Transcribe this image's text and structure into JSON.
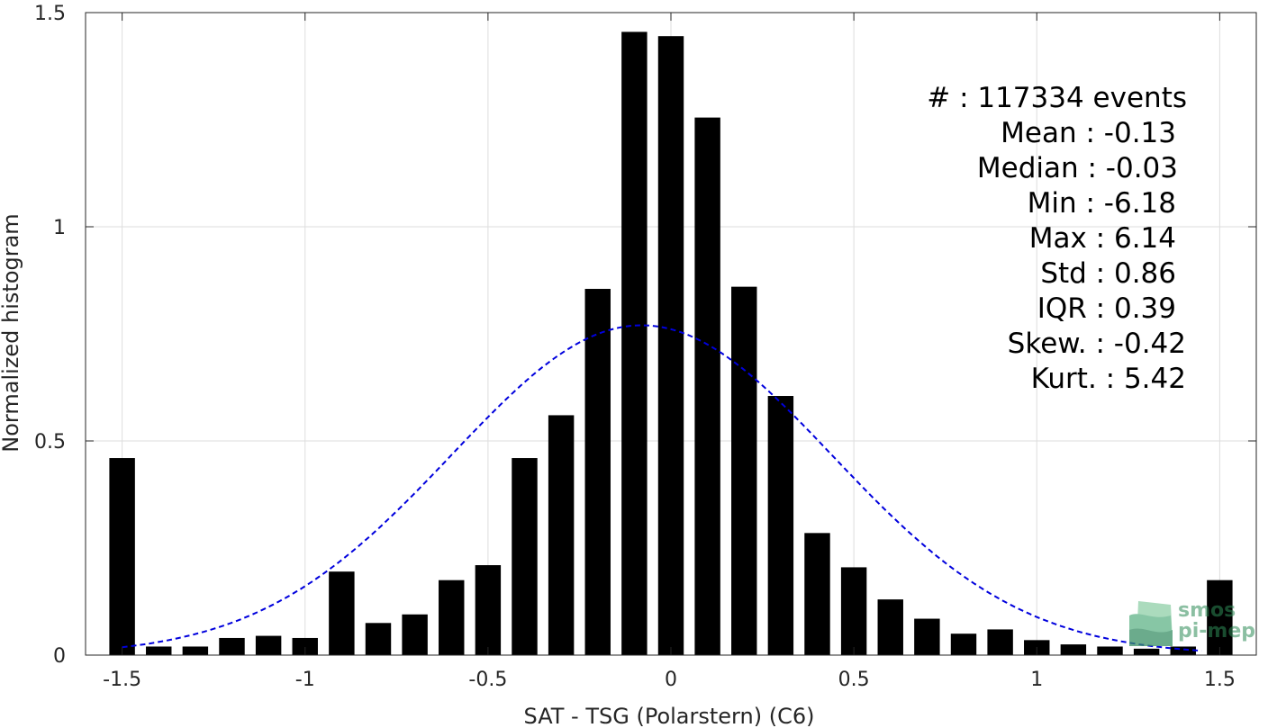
{
  "chart_data": {
    "type": "bar",
    "title": "",
    "xlabel": "SAT - TSG (Polarstern) (C6)",
    "ylabel": "Normalized histogram",
    "xlim": [
      -1.6,
      1.6
    ],
    "ylim": [
      0,
      1.5
    ],
    "grid": true,
    "xticks": [
      -1.5,
      -1,
      -0.5,
      0,
      0.5,
      1,
      1.5
    ],
    "xtick_labels": [
      "-1.5",
      "-1",
      "-0.5",
      "0",
      "0.5",
      "1",
      "1.5"
    ],
    "yticks": [
      0,
      0.5,
      1,
      1.5
    ],
    "ytick_labels": [
      "0",
      "0.5",
      "1",
      "1.5"
    ],
    "bar_width": 0.07,
    "x": [
      -1.5,
      -1.4,
      -1.3,
      -1.2,
      -1.1,
      -1.0,
      -0.9,
      -0.8,
      -0.7,
      -0.6,
      -0.5,
      -0.4,
      -0.3,
      -0.2,
      -0.1,
      0.0,
      0.1,
      0.2,
      0.3,
      0.4,
      0.5,
      0.6,
      0.7,
      0.8,
      0.9,
      1.0,
      1.1,
      1.2,
      1.3,
      1.4,
      1.5
    ],
    "values": [
      0.46,
      0.02,
      0.02,
      0.04,
      0.045,
      0.04,
      0.195,
      0.075,
      0.095,
      0.175,
      0.21,
      0.46,
      0.56,
      0.855,
      1.455,
      1.445,
      1.255,
      0.86,
      0.605,
      0.285,
      0.205,
      0.13,
      0.085,
      0.05,
      0.06,
      0.035,
      0.025,
      0.02,
      0.015,
      0.02,
      0.175
    ],
    "bar_color": "#000000",
    "fit_curve": {
      "style": "dashed",
      "color": "#0000dd",
      "x_range": [
        -1.5,
        1.45
      ],
      "mean": -0.08,
      "std": 0.52,
      "peak": 0.77
    }
  },
  "stats": {
    "lines": [
      {
        "label": "#  ",
        "value": "117334 events"
      },
      {
        "label": "Mean",
        "value": "-0.13"
      },
      {
        "label": "Median",
        "value": "-0.03"
      },
      {
        "label": "Min",
        "value": "-6.18"
      },
      {
        "label": "Max",
        "value": "6.14"
      },
      {
        "label": "Std",
        "value": "0.86"
      },
      {
        "label": "IQR",
        "value": "0.39"
      },
      {
        "label": "Skew.",
        "value": "-0.42"
      },
      {
        "label": "Kurt.",
        "value": "5.42"
      }
    ]
  },
  "logo": {
    "line1": "smos",
    "line2": "pi-mep",
    "color": "#2e8b57"
  }
}
